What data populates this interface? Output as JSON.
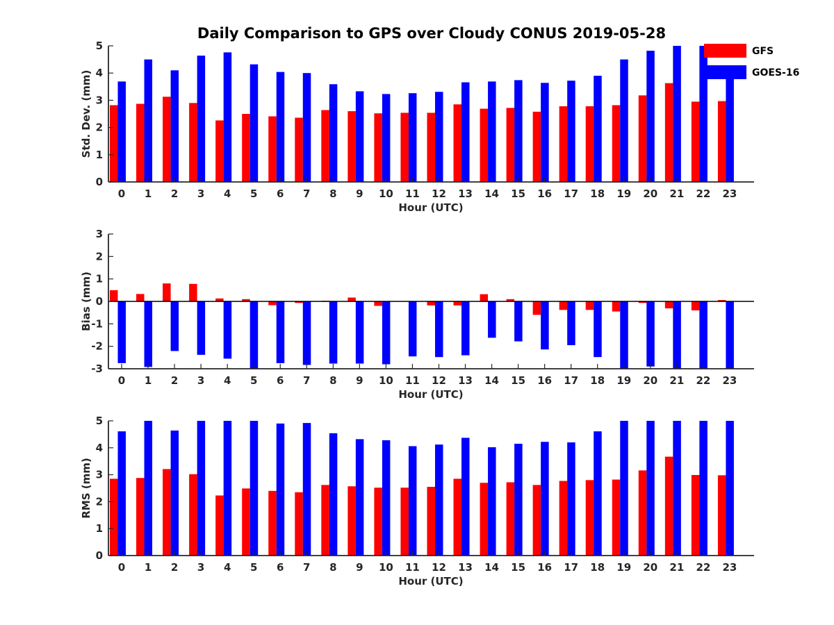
{
  "title": "Daily Comparison to GPS over Cloudy CONUS 2019-05-28",
  "legend": [
    {
      "name": "GFS",
      "color": "#ff0000"
    },
    {
      "name": "GOES-16",
      "color": "#0000ff"
    }
  ],
  "chart_data": [
    {
      "type": "bar",
      "ylabel": "Std. Dev. (mm)",
      "xlabel": "Hour (UTC)",
      "ylim": [
        0,
        5
      ],
      "yticks": [
        0,
        1,
        2,
        3,
        4,
        5
      ],
      "categories": [
        "0",
        "1",
        "2",
        "3",
        "4",
        "5",
        "6",
        "7",
        "8",
        "9",
        "10",
        "11",
        "12",
        "13",
        "14",
        "15",
        "16",
        "17",
        "18",
        "19",
        "20",
        "21",
        "22",
        "23"
      ],
      "series": [
        {
          "name": "GFS",
          "values": [
            2.82,
            2.87,
            3.13,
            2.9,
            2.26,
            2.5,
            2.41,
            2.36,
            2.64,
            2.6,
            2.52,
            2.54,
            2.54,
            2.85,
            2.69,
            2.72,
            2.58,
            2.78,
            2.78,
            2.82,
            3.18,
            3.63,
            2.95,
            2.97
          ]
        },
        {
          "name": "GOES-16",
          "values": [
            3.69,
            4.5,
            4.1,
            4.64,
            4.76,
            4.32,
            4.04,
            4.0,
            3.59,
            3.33,
            3.23,
            3.26,
            3.31,
            3.66,
            3.69,
            3.74,
            3.64,
            3.72,
            3.9,
            4.5,
            4.82,
            5.0,
            5.0,
            3.8
          ]
        }
      ]
    },
    {
      "type": "bar",
      "ylabel": "Bias (mm)",
      "xlabel": "Hour (UTC)",
      "ylim": [
        -3,
        3
      ],
      "yticks": [
        -3,
        -2,
        -1,
        0,
        1,
        2,
        3
      ],
      "categories": [
        "0",
        "1",
        "2",
        "3",
        "4",
        "5",
        "6",
        "7",
        "8",
        "9",
        "10",
        "11",
        "12",
        "13",
        "14",
        "15",
        "16",
        "17",
        "18",
        "19",
        "20",
        "21",
        "22",
        "23"
      ],
      "series": [
        {
          "name": "GFS",
          "values": [
            0.5,
            0.33,
            0.8,
            0.78,
            0.13,
            0.1,
            -0.17,
            -0.07,
            0.03,
            0.17,
            -0.2,
            0.0,
            -0.18,
            -0.18,
            0.32,
            0.1,
            -0.6,
            -0.38,
            -0.38,
            -0.45,
            -0.07,
            -0.31,
            -0.4,
            0.06
          ]
        },
        {
          "name": "GOES-16",
          "values": [
            -2.75,
            -2.92,
            -2.21,
            -2.38,
            -2.55,
            -3.0,
            -2.75,
            -2.83,
            -2.77,
            -2.77,
            -2.8,
            -2.45,
            -2.48,
            -2.4,
            -1.62,
            -1.78,
            -2.14,
            -1.95,
            -2.48,
            -3.0,
            -2.9,
            -3.0,
            -3.0,
            -3.0
          ]
        }
      ]
    },
    {
      "type": "bar",
      "ylabel": "RMS (mm)",
      "xlabel": "Hour (UTC)",
      "ylim": [
        0,
        5
      ],
      "yticks": [
        0,
        1,
        2,
        3,
        4,
        5
      ],
      "categories": [
        "0",
        "1",
        "2",
        "3",
        "4",
        "5",
        "6",
        "7",
        "8",
        "9",
        "10",
        "11",
        "12",
        "13",
        "14",
        "15",
        "16",
        "17",
        "18",
        "19",
        "20",
        "21",
        "22",
        "23"
      ],
      "series": [
        {
          "name": "GFS",
          "values": [
            2.85,
            2.88,
            3.21,
            3.02,
            2.23,
            2.49,
            2.4,
            2.35,
            2.62,
            2.57,
            2.52,
            2.52,
            2.55,
            2.85,
            2.7,
            2.72,
            2.62,
            2.77,
            2.8,
            2.82,
            3.16,
            3.67,
            2.99,
            2.98
          ]
        },
        {
          "name": "GOES-16",
          "values": [
            4.61,
            5.0,
            4.64,
            5.0,
            5.0,
            5.0,
            4.9,
            4.92,
            4.54,
            4.32,
            4.28,
            4.06,
            4.12,
            4.37,
            4.02,
            4.15,
            4.22,
            4.2,
            4.61,
            5.0,
            5.0,
            5.0,
            5.0,
            5.0
          ]
        }
      ]
    }
  ]
}
